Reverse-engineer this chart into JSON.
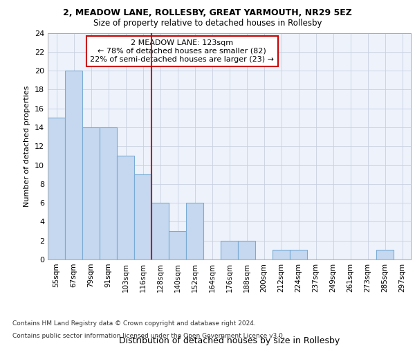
{
  "title1": "2, MEADOW LANE, ROLLESBY, GREAT YARMOUTH, NR29 5EZ",
  "title2": "Size of property relative to detached houses in Rollesby",
  "xlabel": "Distribution of detached houses by size in Rollesby",
  "ylabel": "Number of detached properties",
  "bins": [
    "55sqm",
    "67sqm",
    "79sqm",
    "91sqm",
    "103sqm",
    "116sqm",
    "128sqm",
    "140sqm",
    "152sqm",
    "164sqm",
    "176sqm",
    "188sqm",
    "200sqm",
    "212sqm",
    "224sqm",
    "237sqm",
    "249sqm",
    "261sqm",
    "273sqm",
    "285sqm",
    "297sqm"
  ],
  "values": [
    15,
    20,
    14,
    14,
    11,
    9,
    6,
    3,
    6,
    0,
    2,
    2,
    0,
    1,
    1,
    0,
    0,
    0,
    0,
    1,
    0
  ],
  "bar_color": "#c5d8f0",
  "bar_edge_color": "#7aabd4",
  "vline_x_index": 6,
  "vline_color": "#cc0000",
  "annotation_text": "2 MEADOW LANE: 123sqm\n← 78% of detached houses are smaller (82)\n22% of semi-detached houses are larger (23) →",
  "annotation_box_color": "#cc0000",
  "ylim": [
    0,
    24
  ],
  "yticks": [
    0,
    2,
    4,
    6,
    8,
    10,
    12,
    14,
    16,
    18,
    20,
    22,
    24
  ],
  "footer1": "Contains HM Land Registry data © Crown copyright and database right 2024.",
  "footer2": "Contains public sector information licensed under the Open Government Licence v3.0.",
  "bg_color": "#edf2fb",
  "grid_color": "#c8d0e0"
}
